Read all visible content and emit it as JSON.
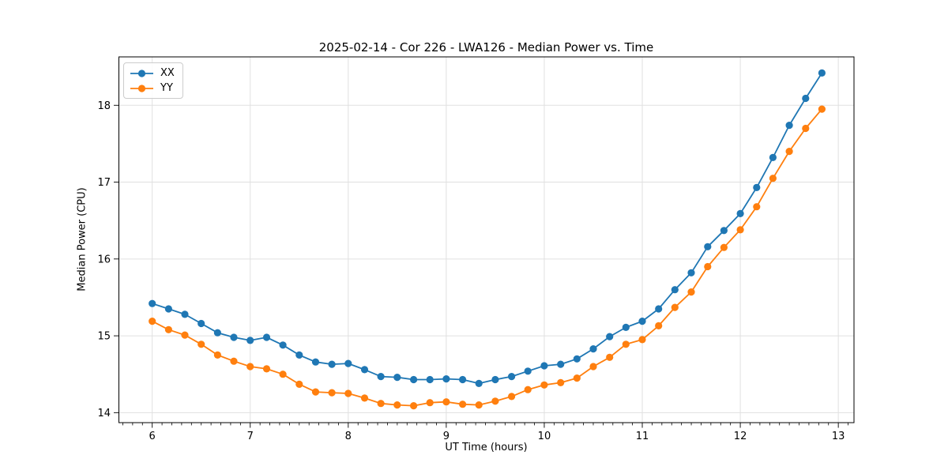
{
  "chart_data": {
    "type": "line",
    "title": "2025-02-14 - Cor 226 - LWA126 - Median Power vs. Time",
    "xlabel": "UT Time (hours)",
    "ylabel": "Median Power (CPU)",
    "xlim": [
      5.66,
      13.16
    ],
    "ylim": [
      13.87,
      18.63
    ],
    "x_ticks": [
      6,
      7,
      8,
      9,
      10,
      11,
      12,
      13
    ],
    "y_ticks": [
      14,
      15,
      16,
      17,
      18
    ],
    "x_minor_tick_step": 0.1,
    "grid": true,
    "grid_color": "#e0e0e0",
    "legend_position": "upper left",
    "x": [
      6.0,
      6.167,
      6.333,
      6.5,
      6.667,
      6.833,
      7.0,
      7.167,
      7.333,
      7.5,
      7.667,
      7.833,
      8.0,
      8.167,
      8.333,
      8.5,
      8.667,
      8.833,
      9.0,
      9.167,
      9.333,
      9.5,
      9.667,
      9.833,
      10.0,
      10.167,
      10.333,
      10.5,
      10.667,
      10.833,
      11.0,
      11.167,
      11.333,
      11.5,
      11.667,
      11.833,
      12.0,
      12.167,
      12.333,
      12.5,
      12.667,
      12.833
    ],
    "series": [
      {
        "name": "XX",
        "color": "#1f77b4",
        "marker": "circle",
        "values": [
          15.42,
          15.35,
          15.28,
          15.16,
          15.04,
          14.98,
          14.94,
          14.98,
          14.88,
          14.75,
          14.66,
          14.63,
          14.64,
          14.56,
          14.47,
          14.46,
          14.43,
          14.43,
          14.44,
          14.43,
          14.38,
          14.43,
          14.47,
          14.54,
          14.61,
          14.63,
          14.7,
          14.83,
          14.99,
          15.11,
          15.19,
          15.35,
          15.6,
          15.82,
          16.16,
          16.37,
          16.59,
          16.93,
          17.32,
          17.74,
          18.09,
          18.42
        ]
      },
      {
        "name": "YY",
        "color": "#ff7f0e",
        "marker": "circle",
        "values": [
          15.19,
          15.08,
          15.01,
          14.89,
          14.75,
          14.67,
          14.6,
          14.57,
          14.5,
          14.37,
          14.27,
          14.26,
          14.25,
          14.19,
          14.12,
          14.1,
          14.09,
          14.13,
          14.14,
          14.11,
          14.1,
          14.15,
          14.21,
          14.3,
          14.36,
          14.39,
          14.45,
          14.6,
          14.72,
          14.89,
          14.95,
          15.13,
          15.37,
          15.57,
          15.9,
          16.15,
          16.38,
          16.68,
          17.05,
          17.4,
          17.7,
          17.95
        ]
      }
    ]
  }
}
